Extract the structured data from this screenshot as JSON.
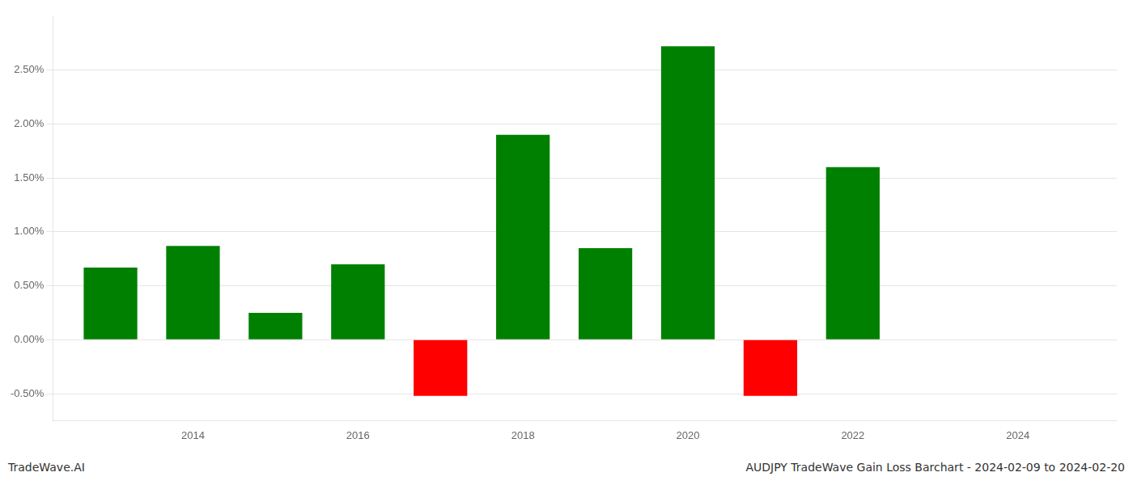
{
  "chart_data": {
    "type": "bar",
    "x": [
      2013,
      2014,
      2015,
      2016,
      2017,
      2018,
      2019,
      2020,
      2021,
      2022,
      2023
    ],
    "values": [
      0.0067,
      0.0087,
      0.0025,
      0.007,
      -0.0052,
      0.019,
      0.0085,
      0.0272,
      -0.0052,
      0.016,
      0.0
    ],
    "colors": [
      "#008000",
      "#008000",
      "#008000",
      "#008000",
      "#ff0000",
      "#008000",
      "#008000",
      "#008000",
      "#ff0000",
      "#008000",
      "#008000"
    ],
    "xlim": [
      2012.3,
      2025.2
    ],
    "xticks": [
      2014,
      2016,
      2018,
      2020,
      2022,
      2024
    ],
    "ylim": [
      -0.0075,
      0.03
    ],
    "yticks": [
      {
        "value": -0.005,
        "label": "-0.50%"
      },
      {
        "value": 0.0,
        "label": "0.00%"
      },
      {
        "value": 0.005,
        "label": "0.50%"
      },
      {
        "value": 0.01,
        "label": "1.00%"
      },
      {
        "value": 0.015,
        "label": "1.50%"
      },
      {
        "value": 0.02,
        "label": "2.00%"
      },
      {
        "value": 0.025,
        "label": "2.50%"
      }
    ],
    "grid": "y",
    "annotations": [
      "TradeWave.AI",
      "AUDJPY TradeWave Gain Loss Barchart - 2024-02-09 to 2024-02-20"
    ]
  }
}
